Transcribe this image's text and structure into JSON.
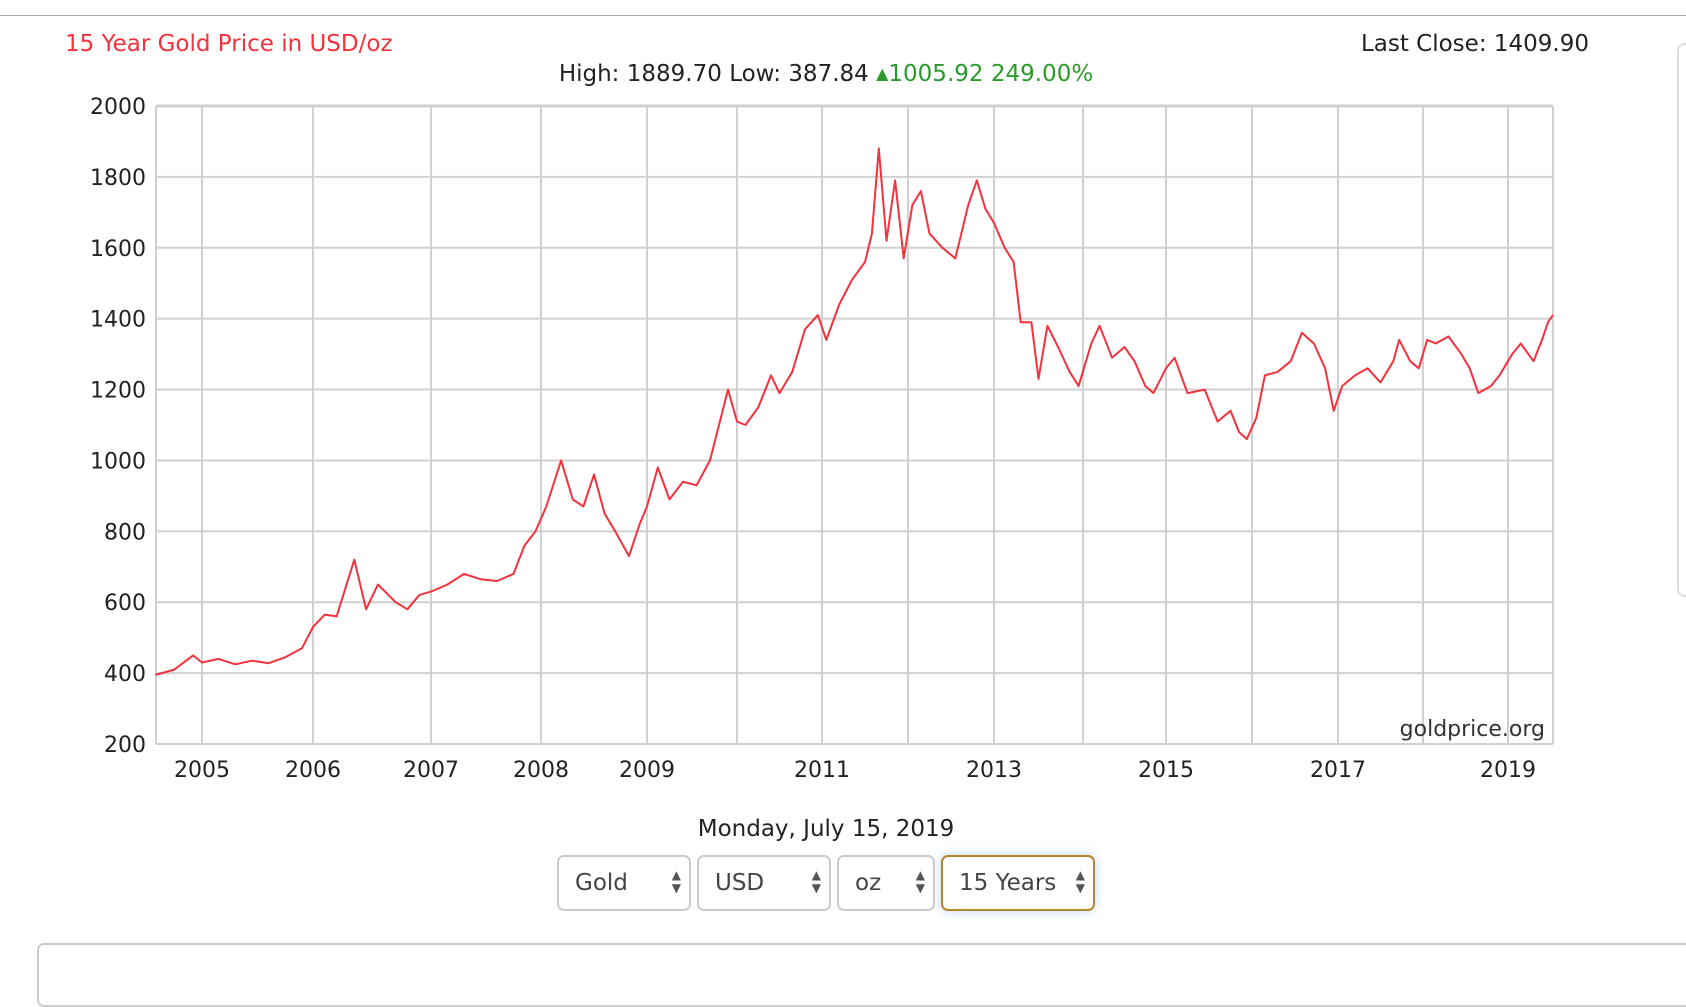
{
  "header": {
    "title": "15 Year Gold Price in USD/oz",
    "last_close_label": "Last Close:",
    "last_close_value": "1409.90",
    "high_label": "High:",
    "high_value": "1889.70",
    "low_label": "Low:",
    "low_value": "387.84",
    "change_value": "1005.92",
    "change_percent": "249.00%",
    "up_icon": "▲"
  },
  "colors": {
    "line": "#f2323c",
    "up": "#2a9a2a",
    "grid": "#d0d0d0",
    "active_border": "#b8862a"
  },
  "chart_data": {
    "type": "line",
    "title": "15 Year Gold Price in USD/oz",
    "xlabel": "",
    "ylabel": "",
    "ylim": [
      200,
      2000
    ],
    "xlim": [
      2004.58,
      2019.53
    ],
    "y_ticks": [
      200,
      400,
      600,
      800,
      1000,
      1200,
      1400,
      1600,
      1800,
      2000
    ],
    "x_gridlines": [
      2005,
      2006,
      2007,
      2008,
      2009,
      2010,
      2011,
      2012,
      2013,
      2014,
      2015,
      2016,
      2017,
      2018,
      2019
    ],
    "x_tick_labels": [
      "2005",
      "2006",
      "2007",
      "2008",
      "2009",
      "2011",
      "2013",
      "2015",
      "2017",
      "2019"
    ],
    "grid": true,
    "watermark": "goldprice.org",
    "series": [
      {
        "name": "Gold USD/oz",
        "points": [
          [
            2004.58,
            395
          ],
          [
            2004.75,
            410
          ],
          [
            2004.92,
            450
          ],
          [
            2005.0,
            430
          ],
          [
            2005.15,
            440
          ],
          [
            2005.3,
            425
          ],
          [
            2005.45,
            435
          ],
          [
            2005.6,
            428
          ],
          [
            2005.75,
            445
          ],
          [
            2005.9,
            470
          ],
          [
            2006.0,
            530
          ],
          [
            2006.1,
            565
          ],
          [
            2006.2,
            560
          ],
          [
            2006.35,
            720
          ],
          [
            2006.45,
            580
          ],
          [
            2006.55,
            650
          ],
          [
            2006.7,
            600
          ],
          [
            2006.8,
            580
          ],
          [
            2006.9,
            620
          ],
          [
            2007.0,
            630
          ],
          [
            2007.15,
            650
          ],
          [
            2007.3,
            680
          ],
          [
            2007.45,
            665
          ],
          [
            2007.6,
            660
          ],
          [
            2007.75,
            680
          ],
          [
            2007.85,
            760
          ],
          [
            2007.95,
            800
          ],
          [
            2008.05,
            870
          ],
          [
            2008.19,
            1000
          ],
          [
            2008.3,
            890
          ],
          [
            2008.4,
            870
          ],
          [
            2008.5,
            960
          ],
          [
            2008.6,
            850
          ],
          [
            2008.7,
            800
          ],
          [
            2008.83,
            730
          ],
          [
            2008.93,
            820
          ],
          [
            2009.0,
            870
          ],
          [
            2009.12,
            980
          ],
          [
            2009.25,
            890
          ],
          [
            2009.4,
            940
          ],
          [
            2009.55,
            930
          ],
          [
            2009.7,
            1000
          ],
          [
            2009.8,
            1100
          ],
          [
            2009.9,
            1200
          ],
          [
            2010.0,
            1110
          ],
          [
            2010.1,
            1100
          ],
          [
            2010.25,
            1150
          ],
          [
            2010.4,
            1240
          ],
          [
            2010.5,
            1190
          ],
          [
            2010.65,
            1250
          ],
          [
            2010.8,
            1370
          ],
          [
            2010.95,
            1410
          ],
          [
            2011.05,
            1340
          ],
          [
            2011.2,
            1440
          ],
          [
            2011.35,
            1510
          ],
          [
            2011.5,
            1560
          ],
          [
            2011.58,
            1640
          ],
          [
            2011.66,
            1880
          ],
          [
            2011.75,
            1620
          ],
          [
            2011.85,
            1790
          ],
          [
            2011.95,
            1570
          ],
          [
            2012.05,
            1720
          ],
          [
            2012.15,
            1760
          ],
          [
            2012.25,
            1640
          ],
          [
            2012.4,
            1600
          ],
          [
            2012.55,
            1570
          ],
          [
            2012.7,
            1720
          ],
          [
            2012.8,
            1790
          ],
          [
            2012.9,
            1710
          ],
          [
            2013.0,
            1670
          ],
          [
            2013.12,
            1600
          ],
          [
            2013.22,
            1560
          ],
          [
            2013.3,
            1390
          ],
          [
            2013.42,
            1390
          ],
          [
            2013.5,
            1230
          ],
          [
            2013.6,
            1380
          ],
          [
            2013.72,
            1320
          ],
          [
            2013.85,
            1250
          ],
          [
            2013.95,
            1210
          ],
          [
            2014.1,
            1330
          ],
          [
            2014.2,
            1380
          ],
          [
            2014.35,
            1290
          ],
          [
            2014.5,
            1320
          ],
          [
            2014.62,
            1280
          ],
          [
            2014.75,
            1210
          ],
          [
            2014.85,
            1190
          ],
          [
            2015.0,
            1260
          ],
          [
            2015.1,
            1290
          ],
          [
            2015.25,
            1190
          ],
          [
            2015.45,
            1200
          ],
          [
            2015.6,
            1110
          ],
          [
            2015.75,
            1140
          ],
          [
            2015.85,
            1080
          ],
          [
            2015.94,
            1060
          ],
          [
            2016.05,
            1120
          ],
          [
            2016.15,
            1240
          ],
          [
            2016.3,
            1250
          ],
          [
            2016.45,
            1280
          ],
          [
            2016.58,
            1360
          ],
          [
            2016.72,
            1330
          ],
          [
            2016.85,
            1260
          ],
          [
            2016.95,
            1140
          ],
          [
            2017.05,
            1210
          ],
          [
            2017.2,
            1240
          ],
          [
            2017.35,
            1260
          ],
          [
            2017.5,
            1220
          ],
          [
            2017.65,
            1280
          ],
          [
            2017.72,
            1340
          ],
          [
            2017.85,
            1280
          ],
          [
            2017.95,
            1260
          ],
          [
            2018.05,
            1340
          ],
          [
            2018.15,
            1330
          ],
          [
            2018.3,
            1350
          ],
          [
            2018.45,
            1300
          ],
          [
            2018.55,
            1260
          ],
          [
            2018.65,
            1190
          ],
          [
            2018.8,
            1210
          ],
          [
            2018.9,
            1240
          ],
          [
            2019.05,
            1300
          ],
          [
            2019.15,
            1330
          ],
          [
            2019.3,
            1280
          ],
          [
            2019.4,
            1340
          ],
          [
            2019.47,
            1390
          ],
          [
            2019.53,
            1410
          ]
        ]
      }
    ]
  },
  "footer": {
    "date": "Monday, July 15, 2019",
    "selects": [
      {
        "name": "metal",
        "value": "Gold"
      },
      {
        "name": "currency",
        "value": "USD"
      },
      {
        "name": "unit",
        "value": "oz"
      },
      {
        "name": "range",
        "value": "15 Years"
      }
    ],
    "select_arrow_icon": "▲▼"
  }
}
